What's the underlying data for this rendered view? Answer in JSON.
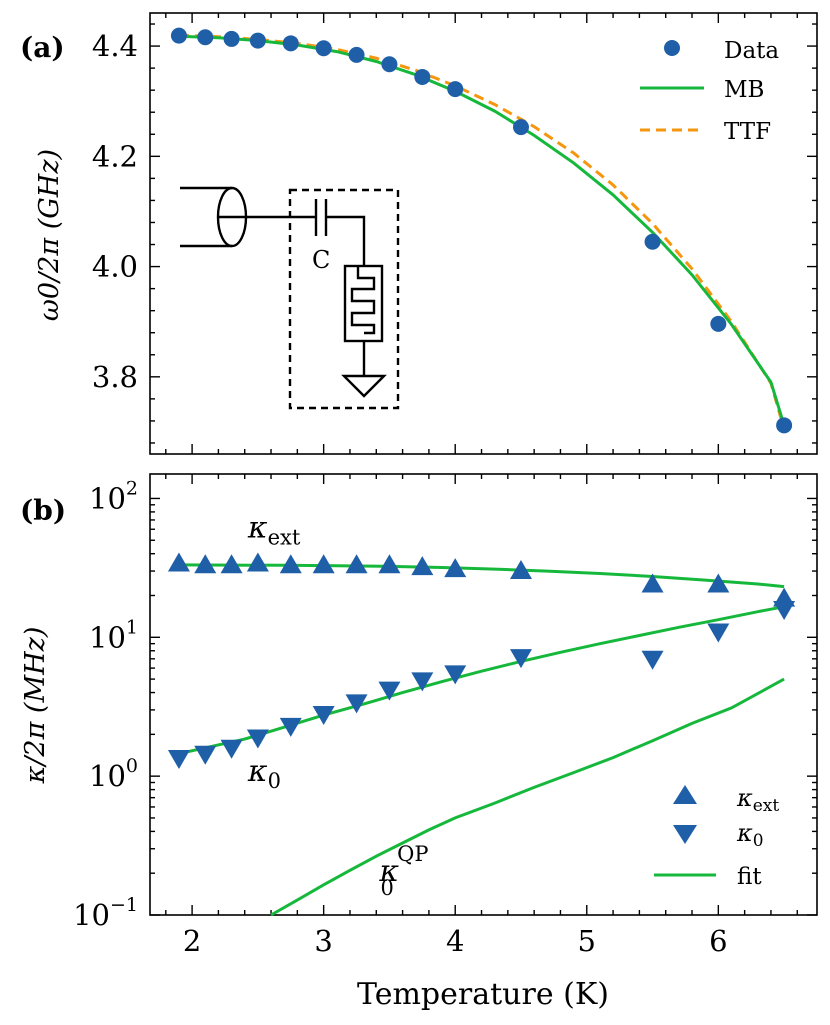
{
  "chart_data": [
    {
      "panel_label": "(a)",
      "type": "scatter",
      "title": "",
      "xlabel": "",
      "ylabel": "ω0/2π (GHz)",
      "xlim": [
        1.68,
        6.75
      ],
      "ylim": [
        3.66,
        4.46
      ],
      "yscale": "linear",
      "xticks": [
        2,
        3,
        4,
        5,
        6
      ],
      "yticks": [
        3.8,
        4.0,
        4.2,
        4.4
      ],
      "ytick_labels": [
        "3.8",
        "4.0",
        "4.2",
        "4.4"
      ],
      "legend_position": "top-right",
      "series": [
        {
          "name": "Data",
          "kind": "scatter",
          "marker": "circle",
          "color": "#1f5fa8",
          "x": [
            1.9,
            2.1,
            2.3,
            2.5,
            2.75,
            3.0,
            3.25,
            3.5,
            3.75,
            4.0,
            4.5,
            5.5,
            6.0,
            6.5
          ],
          "y": [
            4.419,
            4.416,
            4.413,
            4.41,
            4.405,
            4.396,
            4.384,
            4.367,
            4.344,
            4.322,
            4.253,
            4.045,
            3.896,
            3.712
          ]
        },
        {
          "name": "MB",
          "kind": "line",
          "color": "#16b83c",
          "x": [
            1.9,
            2.2,
            2.5,
            2.8,
            3.1,
            3.4,
            3.7,
            4.0,
            4.3,
            4.6,
            4.9,
            5.2,
            5.5,
            5.8,
            6.1,
            6.4,
            6.5
          ],
          "y": [
            4.418,
            4.415,
            4.41,
            4.402,
            4.39,
            4.372,
            4.348,
            4.318,
            4.282,
            4.238,
            4.188,
            4.13,
            4.062,
            3.985,
            3.895,
            3.79,
            3.712
          ]
        },
        {
          "name": "TTF",
          "kind": "dashed-line",
          "color": "#f5960e",
          "x": [
            1.9,
            2.2,
            2.5,
            2.8,
            3.1,
            3.4,
            3.7,
            4.0,
            4.3,
            4.6,
            4.9,
            5.2,
            5.5,
            5.8,
            6.1,
            6.4,
            6.5
          ],
          "y": [
            4.42,
            4.417,
            4.412,
            4.405,
            4.394,
            4.378,
            4.356,
            4.328,
            4.294,
            4.254,
            4.206,
            4.148,
            4.078,
            3.996,
            3.9,
            3.788,
            3.705
          ]
        }
      ],
      "inset": {
        "description_label": "C"
      }
    },
    {
      "panel_label": "(b)",
      "type": "scatter",
      "title": "",
      "xlabel": "Temperature (K)",
      "ylabel": "κ/2π (MHz)",
      "xlim": [
        1.68,
        6.75
      ],
      "ylim": [
        0.1,
        150
      ],
      "yscale": "log",
      "xticks": [
        2,
        3,
        4,
        5,
        6
      ],
      "xtick_labels": [
        "2",
        "3",
        "4",
        "5",
        "6"
      ],
      "yticks": [
        0.1,
        1,
        10,
        100
      ],
      "ytick_labels": [
        {
          "base": "10",
          "exp": "−1"
        },
        {
          "base": "10",
          "exp": "0"
        },
        {
          "base": "10",
          "exp": "1"
        },
        {
          "base": "10",
          "exp": "2"
        }
      ],
      "legend_position": "bottom-right",
      "annotations": [
        {
          "text": "κ",
          "sub": "ext",
          "x": 2.5,
          "y": 60
        },
        {
          "text": "κ",
          "sub": "0",
          "x": 2.5,
          "y": 1.05
        },
        {
          "text": "κ",
          "sub": "0",
          "sup": "QP",
          "x": 3.5,
          "y": 0.2
        }
      ],
      "series": [
        {
          "name": "κext",
          "label_main": "κ",
          "label_sub": "ext",
          "kind": "scatter",
          "marker": "triangle-up",
          "color": "#1f5fa8",
          "x": [
            1.9,
            2.1,
            2.3,
            2.5,
            2.75,
            3.0,
            3.25,
            3.5,
            3.75,
            4.0,
            4.5,
            5.5,
            6.0,
            6.5
          ],
          "y": [
            34,
            33,
            33,
            34,
            33,
            33,
            33,
            33,
            32,
            31,
            30,
            24,
            24,
            19
          ]
        },
        {
          "name": "κ0",
          "label_main": "κ",
          "label_sub": "0",
          "kind": "scatter",
          "marker": "triangle-down",
          "color": "#1f5fa8",
          "x": [
            1.9,
            2.1,
            2.3,
            2.5,
            2.75,
            3.0,
            3.25,
            3.5,
            3.75,
            4.0,
            4.5,
            5.5,
            6.0,
            6.5
          ],
          "y": [
            1.35,
            1.45,
            1.6,
            1.9,
            2.3,
            2.8,
            3.4,
            4.2,
            4.9,
            5.5,
            7.2,
            7.0,
            11.0,
            16.0
          ]
        },
        {
          "name": "fit",
          "kind": "line",
          "color": "#16b83c",
          "curves": [
            {
              "x": [
                1.9,
                2.3,
                2.7,
                3.1,
                3.5,
                3.9,
                4.3,
                4.7,
                5.1,
                5.5,
                5.9,
                6.3,
                6.5
              ],
              "y": [
                33.2,
                33.1,
                33.0,
                32.8,
                32.4,
                31.8,
                31.0,
                30.0,
                28.8,
                27.4,
                25.8,
                24.2,
                23.2
              ]
            },
            {
              "x": [
                1.9,
                2.1,
                2.4,
                2.7,
                3.0,
                3.3,
                3.6,
                3.9,
                4.2,
                4.5,
                4.8,
                5.1,
                5.4,
                5.7,
                6.0,
                6.3,
                6.5
              ],
              "y": [
                1.45,
                1.6,
                1.85,
                2.25,
                2.75,
                3.3,
                4.0,
                4.8,
                5.7,
                6.7,
                7.8,
                9.0,
                10.3,
                11.8,
                13.4,
                15.3,
                16.6
              ]
            },
            {
              "x": [
                2.6,
                2.8,
                3.0,
                3.2,
                3.4,
                3.6,
                3.8,
                4.0,
                4.3,
                4.6,
                4.9,
                5.2,
                5.5,
                5.8,
                6.1,
                6.5
              ],
              "y": [
                0.1,
                0.128,
                0.165,
                0.21,
                0.265,
                0.33,
                0.41,
                0.5,
                0.64,
                0.83,
                1.06,
                1.36,
                1.8,
                2.4,
                3.1,
                5.0
              ]
            }
          ]
        }
      ]
    }
  ]
}
